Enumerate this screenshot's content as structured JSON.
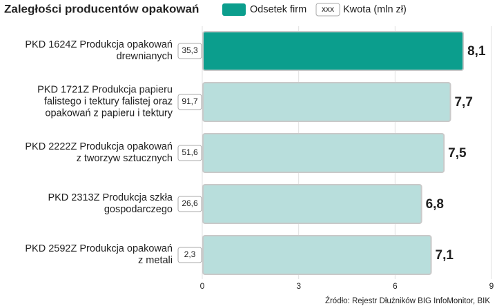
{
  "chart_data": {
    "type": "bar",
    "title": "Zaległości producentów opakowań",
    "categories": [
      "PKD 1624Z Produkcja opakowań\ndrewnianych",
      "PKD 1721Z Produkcja papieru\nfalistego i tektury falistej oraz\nopakowań z papieru i tektury",
      "PKD 2222Z Produkcja opakowań\nz tworzyw sztucznych",
      "PKD 2313Z Produkcja szkła\ngospodarczego",
      "PKD 2592Z Produkcja opakowań\nz metali"
    ],
    "series": [
      {
        "name": "Odsetek firm",
        "color": "#0b9e8d",
        "colors": [
          "#0b9e8d",
          "#b8dedc",
          "#b8dedc",
          "#b8dedc",
          "#b8dedc"
        ],
        "values": [
          8.1,
          7.7,
          7.5,
          6.8,
          7.1
        ],
        "value_labels": [
          "8,1",
          "7,7",
          "7,5",
          "6,8",
          "7,1"
        ]
      },
      {
        "name": "Kwota (mln zł)",
        "legend_sample": "xxx",
        "values": [
          35.3,
          91.7,
          51.6,
          26.6,
          2.3
        ],
        "value_labels": [
          "35,3",
          "91,7",
          "51,6",
          "26,6",
          "2,3"
        ]
      }
    ],
    "xlim": [
      0,
      9
    ],
    "xticks": [
      0,
      3,
      6,
      9
    ],
    "grid": true,
    "source": "Źródło: Rejestr Dłużników BIG InfoMonitor, BIK"
  }
}
